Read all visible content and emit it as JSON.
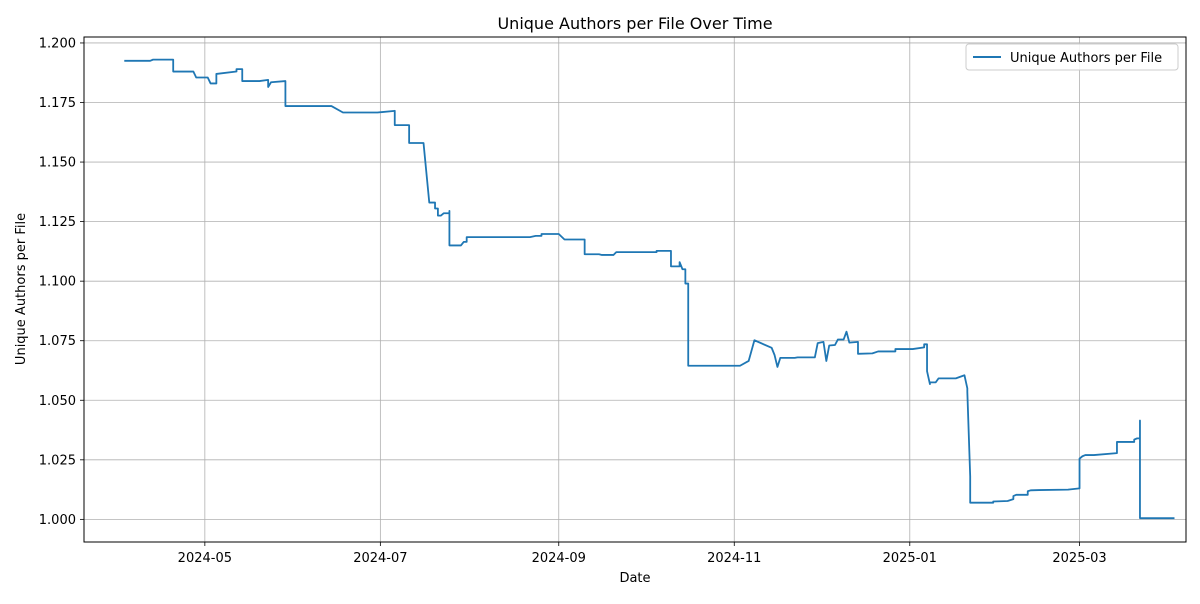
{
  "chart_data": {
    "type": "line",
    "title": "Unique Authors per File Over Time",
    "xlabel": "Date",
    "ylabel": "Unique Authors per File",
    "xlim": [
      "2024-03-20",
      "2025-04-07"
    ],
    "ylim": [
      0.9905,
      1.2025
    ],
    "x_ticks": [
      "2024-05-01",
      "2024-07-01",
      "2024-09-01",
      "2024-11-01",
      "2025-01-01",
      "2025-03-01"
    ],
    "x_tick_labels": [
      "2024-05",
      "2024-07",
      "2024-09",
      "2024-11",
      "2025-01",
      "2025-03"
    ],
    "y_ticks": [
      1.0,
      1.025,
      1.05,
      1.075,
      1.1,
      1.125,
      1.15,
      1.175,
      1.2
    ],
    "y_tick_labels": [
      "1.000",
      "1.025",
      "1.050",
      "1.075",
      "1.100",
      "1.125",
      "1.150",
      "1.175",
      "1.200"
    ],
    "grid": true,
    "legend_position": "top-right",
    "series": [
      {
        "name": "Unique Authors per File",
        "color": "#1f77b4",
        "points": [
          [
            "2024-04-03",
            1.1925
          ],
          [
            "2024-04-12",
            1.1925
          ],
          [
            "2024-04-13",
            1.193
          ],
          [
            "2024-04-20",
            1.193
          ],
          [
            "2024-04-20",
            1.188
          ],
          [
            "2024-04-27",
            1.188
          ],
          [
            "2024-04-28",
            1.1855
          ],
          [
            "2024-05-02",
            1.1855
          ],
          [
            "2024-05-03",
            1.183
          ],
          [
            "2024-05-05",
            1.183
          ],
          [
            "2024-05-05",
            1.187
          ],
          [
            "2024-05-12",
            1.188
          ],
          [
            "2024-05-12",
            1.189
          ],
          [
            "2024-05-14",
            1.189
          ],
          [
            "2024-05-14",
            1.184
          ],
          [
            "2024-05-20",
            1.184
          ],
          [
            "2024-05-23",
            1.1845
          ],
          [
            "2024-05-23",
            1.1815
          ],
          [
            "2024-05-24",
            1.1835
          ],
          [
            "2024-05-29",
            1.184
          ],
          [
            "2024-05-29",
            1.1735
          ],
          [
            "2024-06-14",
            1.1735
          ],
          [
            "2024-06-18",
            1.1708
          ],
          [
            "2024-06-30",
            1.1708
          ],
          [
            "2024-07-06",
            1.1715
          ],
          [
            "2024-07-06",
            1.1655
          ],
          [
            "2024-07-11",
            1.1655
          ],
          [
            "2024-07-11",
            1.158
          ],
          [
            "2024-07-16",
            1.158
          ],
          [
            "2024-07-18",
            1.133
          ],
          [
            "2024-07-20",
            1.133
          ],
          [
            "2024-07-20",
            1.1305
          ],
          [
            "2024-07-21",
            1.1305
          ],
          [
            "2024-07-21",
            1.1275
          ],
          [
            "2024-07-22",
            1.1275
          ],
          [
            "2024-07-23",
            1.1285
          ],
          [
            "2024-07-25",
            1.1285
          ],
          [
            "2024-07-25",
            1.1295
          ],
          [
            "2024-07-25",
            1.115
          ],
          [
            "2024-07-29",
            1.115
          ],
          [
            "2024-07-30",
            1.1165
          ],
          [
            "2024-07-31",
            1.1165
          ],
          [
            "2024-07-31",
            1.1185
          ],
          [
            "2024-08-22",
            1.1185
          ],
          [
            "2024-08-24",
            1.119
          ],
          [
            "2024-08-26",
            1.119
          ],
          [
            "2024-08-26",
            1.1198
          ],
          [
            "2024-09-01",
            1.1198
          ],
          [
            "2024-09-03",
            1.1175
          ],
          [
            "2024-09-10",
            1.1175
          ],
          [
            "2024-09-10",
            1.1113
          ],
          [
            "2024-09-15",
            1.1113
          ],
          [
            "2024-09-16",
            1.111
          ],
          [
            "2024-09-20",
            1.111
          ],
          [
            "2024-09-21",
            1.1122
          ],
          [
            "2024-10-05",
            1.1122
          ],
          [
            "2024-10-05",
            1.1127
          ],
          [
            "2024-10-10",
            1.1127
          ],
          [
            "2024-10-10",
            1.1062
          ],
          [
            "2024-10-13",
            1.1062
          ],
          [
            "2024-10-13",
            1.108
          ],
          [
            "2024-10-14",
            1.105
          ],
          [
            "2024-10-15",
            1.105
          ],
          [
            "2024-10-15",
            1.099
          ],
          [
            "2024-10-16",
            1.099
          ],
          [
            "2024-10-16",
            1.0725
          ],
          [
            "2024-10-16",
            1.0645
          ],
          [
            "2024-11-03",
            1.0645
          ],
          [
            "2024-11-06",
            1.0665
          ],
          [
            "2024-11-08",
            1.0752
          ],
          [
            "2024-11-14",
            1.072
          ],
          [
            "2024-11-15",
            1.069
          ],
          [
            "2024-11-16",
            1.064
          ],
          [
            "2024-11-17",
            1.0678
          ],
          [
            "2024-11-22",
            1.0678
          ],
          [
            "2024-11-23",
            1.068
          ],
          [
            "2024-11-29",
            1.068
          ],
          [
            "2024-11-30",
            1.074
          ],
          [
            "2024-12-02",
            1.0745
          ],
          [
            "2024-12-03",
            1.0665
          ],
          [
            "2024-12-04",
            1.073
          ],
          [
            "2024-12-06",
            1.0732
          ],
          [
            "2024-12-07",
            1.0755
          ],
          [
            "2024-12-09",
            1.0755
          ],
          [
            "2024-12-10",
            1.0788
          ],
          [
            "2024-12-11",
            1.0742
          ],
          [
            "2024-12-14",
            1.0745
          ],
          [
            "2024-12-14",
            1.0695
          ],
          [
            "2024-12-19",
            1.0697
          ],
          [
            "2024-12-21",
            1.0705
          ],
          [
            "2024-12-27",
            1.0705
          ],
          [
            "2024-12-27",
            1.0715
          ],
          [
            "2025-01-02",
            1.0715
          ],
          [
            "2025-01-06",
            1.0722
          ],
          [
            "2025-01-06",
            1.0735
          ],
          [
            "2025-01-07",
            1.0735
          ],
          [
            "2025-01-07",
            1.0622
          ],
          [
            "2025-01-08",
            1.0568
          ],
          [
            "2025-01-08",
            1.0575
          ],
          [
            "2025-01-10",
            1.0575
          ],
          [
            "2025-01-11",
            1.0592
          ],
          [
            "2025-01-17",
            1.0592
          ],
          [
            "2025-01-20",
            1.0605
          ],
          [
            "2025-01-21",
            1.055
          ],
          [
            "2025-01-21",
            1.0535
          ],
          [
            "2025-01-22",
            1.018
          ],
          [
            "2025-01-22",
            1.007
          ],
          [
            "2025-01-30",
            1.007
          ],
          [
            "2025-01-30",
            1.0075
          ],
          [
            "2025-02-04",
            1.0077
          ],
          [
            "2025-02-06",
            1.0085
          ],
          [
            "2025-02-06",
            1.0098
          ],
          [
            "2025-02-07",
            1.0103
          ],
          [
            "2025-02-11",
            1.0103
          ],
          [
            "2025-02-11",
            1.0118
          ],
          [
            "2025-02-12",
            1.0122
          ],
          [
            "2025-02-15",
            1.0123
          ],
          [
            "2025-02-25",
            1.0125
          ],
          [
            "2025-03-01",
            1.013
          ],
          [
            "2025-03-01",
            1.0255
          ],
          [
            "2025-03-02",
            1.0265
          ],
          [
            "2025-03-03",
            1.027
          ],
          [
            "2025-03-06",
            1.027
          ],
          [
            "2025-03-14",
            1.0278
          ],
          [
            "2025-03-14",
            1.0325
          ],
          [
            "2025-03-20",
            1.0325
          ],
          [
            "2025-03-20",
            1.0335
          ],
          [
            "2025-03-21",
            1.034
          ],
          [
            "2025-03-22",
            1.034
          ],
          [
            "2025-03-22",
            1.0415
          ],
          [
            "2025-03-22",
            1.0005
          ],
          [
            "2025-04-03",
            1.0005
          ]
        ]
      }
    ]
  }
}
